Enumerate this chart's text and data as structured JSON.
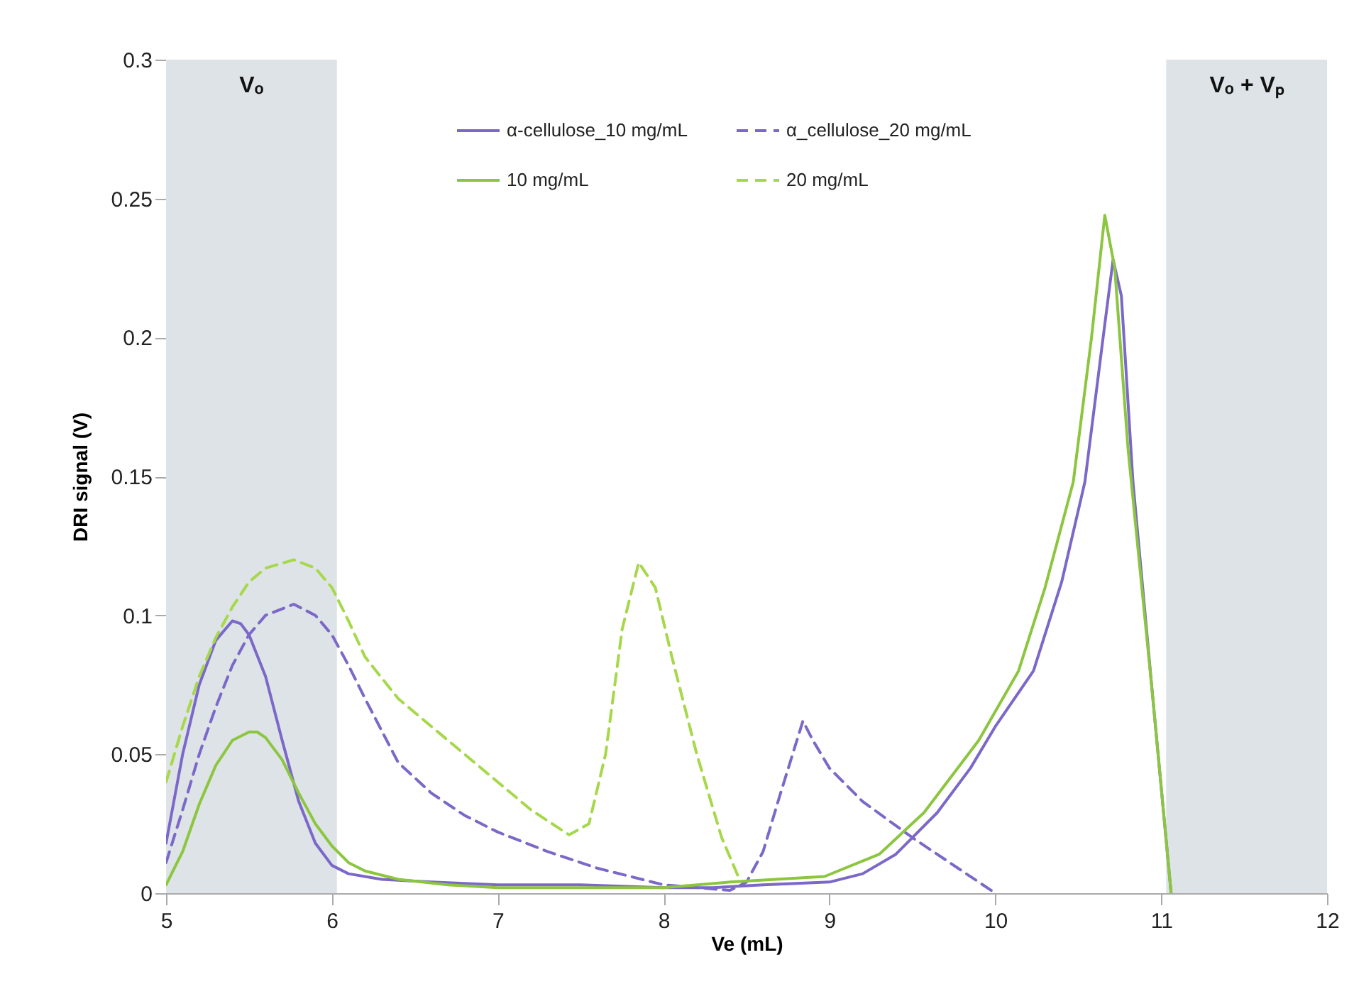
{
  "chart_data": {
    "type": "line",
    "xlabel": "Ve (mL)",
    "ylabel": "DRI signal (V)",
    "xlim": [
      5,
      12
    ],
    "xticks": [
      5,
      6,
      7,
      8,
      9,
      10,
      11,
      12
    ],
    "ylim": [
      0,
      0.3
    ],
    "yticks": [
      0,
      0.05,
      0.1,
      0.15,
      0.2,
      0.25,
      0.3
    ],
    "grid": false,
    "legend": "top",
    "bands": [
      {
        "axis": "x",
        "from": 5,
        "to": 6.03,
        "label": "Vₒ",
        "color": "#dde3e6"
      },
      {
        "axis": "x",
        "from": 11.03,
        "to": 12,
        "label": "Vₒ + Vₚ",
        "color": "#dde3e6"
      }
    ],
    "series": [
      {
        "name": "α-cellulose_10 mg/mL",
        "color": "#7b68c8",
        "line_style": "solid",
        "x": [
          5,
          5.1,
          5.2,
          5.3,
          5.4,
          5.45,
          5.5,
          5.6,
          5.7,
          5.8,
          5.9,
          6.0,
          6.1,
          6.3,
          6.6,
          7,
          7.5,
          8,
          8.3,
          8.6,
          9,
          9.2,
          9.4,
          9.65,
          9.85,
          10,
          10.23,
          10.4,
          10.54,
          10.65,
          10.71,
          10.76,
          10.83,
          10.95,
          11.06
        ],
        "values": [
          0.018,
          0.05,
          0.075,
          0.091,
          0.098,
          0.097,
          0.093,
          0.078,
          0.055,
          0.033,
          0.018,
          0.01,
          0.007,
          0.005,
          0.004,
          0.003,
          0.003,
          0.002,
          0.002,
          0.003,
          0.004,
          0.007,
          0.014,
          0.029,
          0.045,
          0.06,
          0.08,
          0.112,
          0.148,
          0.2,
          0.228,
          0.215,
          0.148,
          0.07,
          0
        ]
      },
      {
        "name": "α_cellulose_20 mg/mL",
        "color": "#7b68c8",
        "line_style": "dashed",
        "x": [
          5,
          5.1,
          5.2,
          5.3,
          5.4,
          5.5,
          5.6,
          5.77,
          5.9,
          6.0,
          6.1,
          6.2,
          6.4,
          6.6,
          6.8,
          7,
          7.3,
          7.6,
          8,
          8.4,
          8.5,
          8.6,
          8.7,
          8.84,
          8.9,
          9.0,
          9.2,
          9.5,
          9.8,
          10
        ],
        "values": [
          0.011,
          0.03,
          0.05,
          0.067,
          0.082,
          0.093,
          0.1,
          0.104,
          0.1,
          0.093,
          0.082,
          0.07,
          0.047,
          0.036,
          0.028,
          0.022,
          0.015,
          0.009,
          0.003,
          0.001,
          0.004,
          0.015,
          0.035,
          0.062,
          0.055,
          0.045,
          0.033,
          0.02,
          0.008,
          0
        ]
      },
      {
        "name": "10 mg/mL",
        "color": "#8cc63f",
        "line_style": "solid",
        "x": [
          5,
          5.1,
          5.2,
          5.3,
          5.4,
          5.5,
          5.55,
          5.6,
          5.7,
          5.8,
          5.9,
          6.0,
          6.1,
          6.2,
          6.4,
          6.7,
          7,
          7.5,
          8,
          8.4,
          8.97,
          9.3,
          9.57,
          9.9,
          10.14,
          10.3,
          10.47,
          10.58,
          10.66,
          10.72,
          10.8,
          10.95,
          11.06
        ],
        "values": [
          0.003,
          0.015,
          0.032,
          0.046,
          0.055,
          0.058,
          0.058,
          0.056,
          0.048,
          0.036,
          0.025,
          0.017,
          0.011,
          0.008,
          0.005,
          0.003,
          0.002,
          0.002,
          0.002,
          0.004,
          0.006,
          0.014,
          0.029,
          0.055,
          0.08,
          0.11,
          0.148,
          0.2,
          0.244,
          0.225,
          0.16,
          0.07,
          0
        ]
      },
      {
        "name": "20 mg/mL",
        "color": "#a6d84a",
        "line_style": "dashed",
        "x": [
          5,
          5.1,
          5.2,
          5.3,
          5.4,
          5.5,
          5.6,
          5.77,
          5.9,
          6.0,
          6.1,
          6.2,
          6.4,
          6.6,
          6.8,
          7.0,
          7.2,
          7.43,
          7.55,
          7.65,
          7.75,
          7.85,
          7.95,
          8.05,
          8.2,
          8.35,
          8.45
        ],
        "values": [
          0.04,
          0.06,
          0.078,
          0.092,
          0.103,
          0.112,
          0.117,
          0.12,
          0.117,
          0.11,
          0.098,
          0.085,
          0.07,
          0.06,
          0.05,
          0.04,
          0.03,
          0.021,
          0.025,
          0.05,
          0.095,
          0.119,
          0.11,
          0.085,
          0.05,
          0.02,
          0.006
        ]
      }
    ]
  }
}
